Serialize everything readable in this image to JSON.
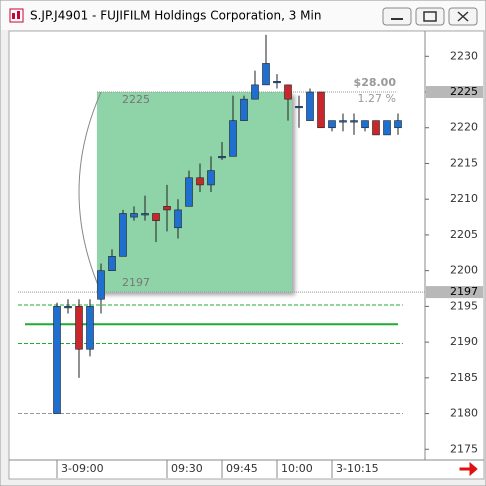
{
  "window": {
    "title": "S.JP.J4901 - FUJIFILM Holdings Corporation, 3 Min"
  },
  "chart_data": {
    "type": "candlestick",
    "categories": [
      "3-09:00",
      null,
      null,
      null,
      null,
      null,
      null,
      null,
      null,
      null,
      "09:30",
      null,
      null,
      null,
      null,
      "09:45",
      null,
      null,
      null,
      null,
      "10:00",
      null,
      null,
      null,
      null,
      "3-10:15",
      null,
      null,
      null,
      null,
      null,
      null
    ],
    "open": [
      2180,
      2195,
      2195,
      2189,
      2196,
      2200,
      2202,
      2207.5,
      2208,
      2208,
      2209,
      2206,
      2209,
      2213,
      2212,
      2216,
      2216,
      2221,
      2224,
      2226,
      2226.5,
      2226,
      2223,
      2221,
      2225,
      2220,
      2221,
      2221,
      2220,
      2221,
      2219,
      2220
    ],
    "high": [
      2195.5,
      2196,
      2196,
      2196,
      2201,
      2203,
      2208.5,
      2209,
      2210.5,
      2208,
      2212,
      2210,
      2214,
      2215,
      2216,
      2218,
      2224.5,
      2224.5,
      2228,
      2233,
      2227.5,
      2226,
      2224.5,
      2225.5,
      2225,
      2221,
      2222,
      2222,
      2221,
      2221,
      2221,
      2222
    ],
    "low": [
      2180,
      2194,
      2185,
      2188,
      2194,
      2200,
      2202,
      2207,
      2207,
      2204,
      2205.5,
      2204.5,
      2209,
      2211,
      2211,
      2215.5,
      2216,
      2221,
      2224,
      2226,
      2225.5,
      2221,
      2220,
      2221,
      2220,
      2219.5,
      2219.5,
      2219,
      2219.5,
      2219,
      2219,
      2219
    ],
    "close": [
      2195,
      2195,
      2189,
      2195,
      2200,
      2202,
      2208,
      2208,
      2208,
      2207,
      2208.5,
      2208.5,
      2213,
      2212,
      2214,
      2216,
      2221,
      2224,
      2226,
      2229,
      2226.5,
      2224,
      2223,
      2225,
      2220,
      2221,
      2221,
      2221,
      2221,
      2219,
      2221,
      2221
    ],
    "up_color": "#1f6fd0",
    "down_color": "#c8282c",
    "ylim": [
      2173.5,
      2233.4
    ],
    "yticks": [
      2175,
      2180,
      2185,
      2190,
      2195,
      2200,
      2205,
      2210,
      2215,
      2220,
      2225,
      2230
    ],
    "levels": [
      {
        "value": 2195.2,
        "color": "#22aa33",
        "style": "dashed"
      },
      {
        "value": 2192.5,
        "color": "#22aa33",
        "style": "solid"
      },
      {
        "value": 2189.8,
        "color": "#22aa33",
        "style": "dashed"
      },
      {
        "value": 2180,
        "color": "#999999",
        "style": "dashed"
      }
    ],
    "measure": {
      "from": 2197,
      "to": 2225,
      "change_label": "$28.00",
      "percent_label": "1.27 %",
      "color": "#8fd4a8"
    },
    "price_markers": [
      2225,
      2197
    ]
  }
}
